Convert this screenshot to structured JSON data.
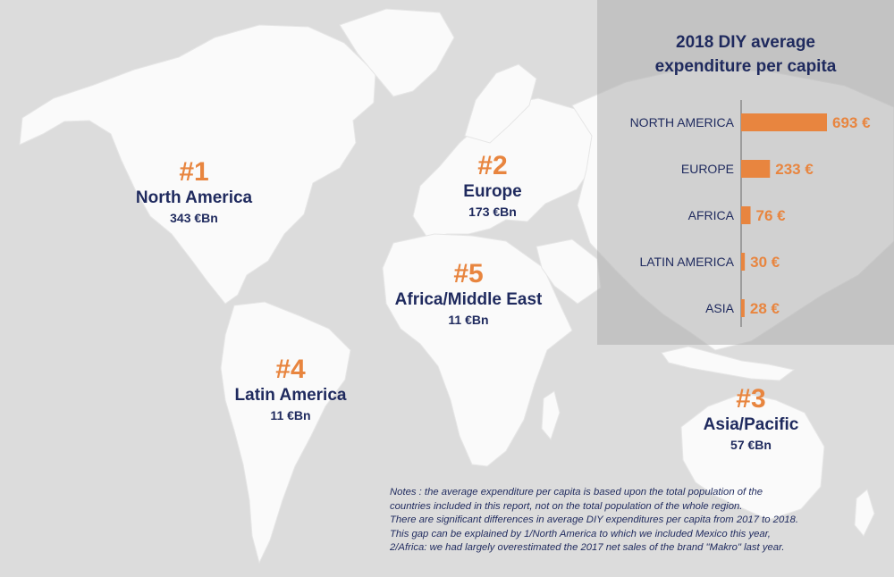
{
  "chart_data": {
    "type": "bar",
    "title": "2018 DIY average expenditure per capita",
    "title_lines": [
      "2018 DIY average",
      "expenditure per capita"
    ],
    "orientation": "horizontal",
    "categories": [
      "NORTH AMERICA",
      "EUROPE",
      "AFRICA",
      "LATIN AMERICA",
      "ASIA"
    ],
    "values": [
      693,
      233,
      76,
      30,
      28
    ],
    "value_labels": [
      "693 €",
      "233 €",
      "76 €",
      "30 €",
      "28 €"
    ],
    "unit": "€",
    "xlim": [
      0,
      693
    ],
    "bar_color": "#e8853f"
  },
  "regions": [
    {
      "rank": "#1",
      "name": "North America",
      "value": "343 €Bn"
    },
    {
      "rank": "#2",
      "name": "Europe",
      "value": "173 €Bn"
    },
    {
      "rank": "#5",
      "name": "Africa/Middle East",
      "value": "11 €Bn"
    },
    {
      "rank": "#4",
      "name": "Latin America",
      "value": "11 €Bn"
    },
    {
      "rank": "#3",
      "name": "Asia/Pacific",
      "value": "57 €Bn"
    }
  ],
  "notes": [
    "Notes : the average expenditure per capita is based upon the total population of the",
    "countries included in this report, not on the total population of the whole region.",
    "There are significant differences in average DIY expenditures per capita from 2017 to 2018.",
    "This gap can be explained by 1/North America to which we included Mexico this year,",
    "2/Africa: we had largely overestimated the 2017 net sales of the brand \"Makro\" last year."
  ],
  "colors": {
    "background": "#dcdcdc",
    "land": "#fafafa",
    "accent": "#e8853f",
    "text": "#1f2a5e",
    "panel": "#b4b4b4"
  }
}
